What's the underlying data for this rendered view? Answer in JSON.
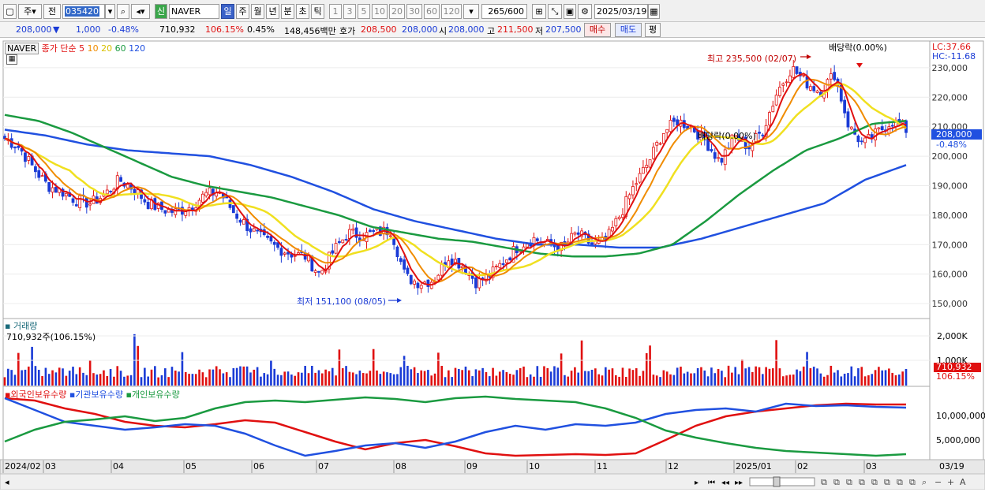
{
  "toolbar": {
    "period_options": [
      "주"
    ],
    "market_label": "전",
    "stock_code": "035420",
    "stock_name": "NAVER",
    "credit_badge": "신",
    "timeframes": [
      "일",
      "주",
      "월",
      "년",
      "분",
      "초",
      "틱"
    ],
    "active_timeframe": "일",
    "intervals": [
      "1",
      "3",
      "5",
      "10",
      "20",
      "30",
      "60",
      "120"
    ],
    "data_count": "265",
    "data_total": "/600",
    "date": "2025/03/19"
  },
  "quote": {
    "price": "208,000",
    "change": "1,000",
    "change_pct": "-0.48%",
    "volume": "710,932",
    "volume_ratio": "106.15%",
    "turnover_rate": "0.45%",
    "amount": "148,456백만",
    "bid_label": "호가",
    "bid": "208,500",
    "ask": "208,000",
    "open_label": "시",
    "open": "208,000",
    "high_label": "고",
    "high": "211,500",
    "low_label": "저",
    "low": "207,500",
    "buy_label": "매수",
    "sell_label": "매도",
    "eval_label": "평"
  },
  "legend": {
    "symbol": "NAVER",
    "title": "종가 단순",
    "ma": [
      {
        "period": "5",
        "color": "#e01010"
      },
      {
        "period": "10",
        "color": "#f08c00"
      },
      {
        "period": "20",
        "color": "#e8d000"
      },
      {
        "period": "60",
        "color": "#1a9a40"
      },
      {
        "period": "120",
        "color": "#2050e0"
      }
    ],
    "lc": "LC:37.66",
    "hc": "HC:-11.68",
    "current_price": "208,000",
    "current_change": "-0.48%"
  },
  "annotations": {
    "high": "최고 235,500 (02/07)",
    "low": "최저 151,100 (08/05)",
    "dividend1": "배당락(0.00%)",
    "dividend2": "배당락(0.00%)"
  },
  "volume_panel": {
    "title": "거래량",
    "info": "710,932주(106.15%)",
    "axis": [
      "2,000K",
      "1,000K"
    ],
    "current": "710,932",
    "current_pct": "106.15%"
  },
  "holding_panel": {
    "series": [
      {
        "name": "외국인보유수량",
        "color": "#e01010"
      },
      {
        "name": "기관보유수량",
        "color": "#2050e0"
      },
      {
        "name": "개인보유수량",
        "color": "#1a9a40"
      }
    ],
    "axis": [
      "10,000,000",
      "5,000,000"
    ]
  },
  "x_axis": {
    "labels": [
      "2024/02",
      "03",
      "04",
      "05",
      "06",
      "07",
      "08",
      "09",
      "10",
      "11",
      "12",
      "2025/01",
      "02",
      "03"
    ],
    "right_label": "03/19"
  },
  "chart_data": {
    "type": "candlestick",
    "y_ticks": [
      230000,
      220000,
      210000,
      200000,
      190000,
      180000,
      170000,
      160000,
      150000
    ],
    "ylim": [
      146000,
      238000
    ],
    "months": [
      "2024/02",
      "03",
      "04",
      "05",
      "06",
      "07",
      "08",
      "09",
      "10",
      "11",
      "12",
      "2025/01",
      "02",
      "03"
    ],
    "close_path": [
      206000,
      203000,
      196000,
      190000,
      188000,
      185000,
      184000,
      187000,
      192000,
      189000,
      184000,
      182000,
      181000,
      183000,
      187000,
      188000,
      181000,
      176000,
      172000,
      169000,
      167000,
      166000,
      160000,
      168000,
      174000,
      173000,
      174000,
      175000,
      159000,
      157000,
      158000,
      166000,
      163000,
      157000,
      160000,
      165000,
      170000,
      172000,
      170000,
      169000,
      174000,
      170000,
      171000,
      180000,
      190000,
      198000,
      208000,
      212000,
      210000,
      205000,
      198000,
      207000,
      203000,
      209000,
      222000,
      230000,
      225000,
      222000,
      228000,
      210000,
      204000,
      208000,
      212000,
      209000
    ],
    "ma60_path": [
      214000,
      212000,
      208000,
      203000,
      198000,
      193000,
      190000,
      188000,
      186000,
      183000,
      180000,
      176000,
      174000,
      172000,
      171000,
      169000,
      167000,
      166000,
      166000,
      167000,
      170000,
      178000,
      187000,
      195000,
      202000,
      206000,
      211000,
      212000
    ],
    "ma120_path": [
      209000,
      207000,
      204000,
      202000,
      201000,
      200000,
      197000,
      193000,
      188000,
      182000,
      178000,
      175000,
      172000,
      170000,
      170000,
      169000,
      169000,
      172000,
      176000,
      180000,
      184000,
      192000,
      197000
    ],
    "volume_current": 710932,
    "volume_current_pct": "106.15%"
  }
}
